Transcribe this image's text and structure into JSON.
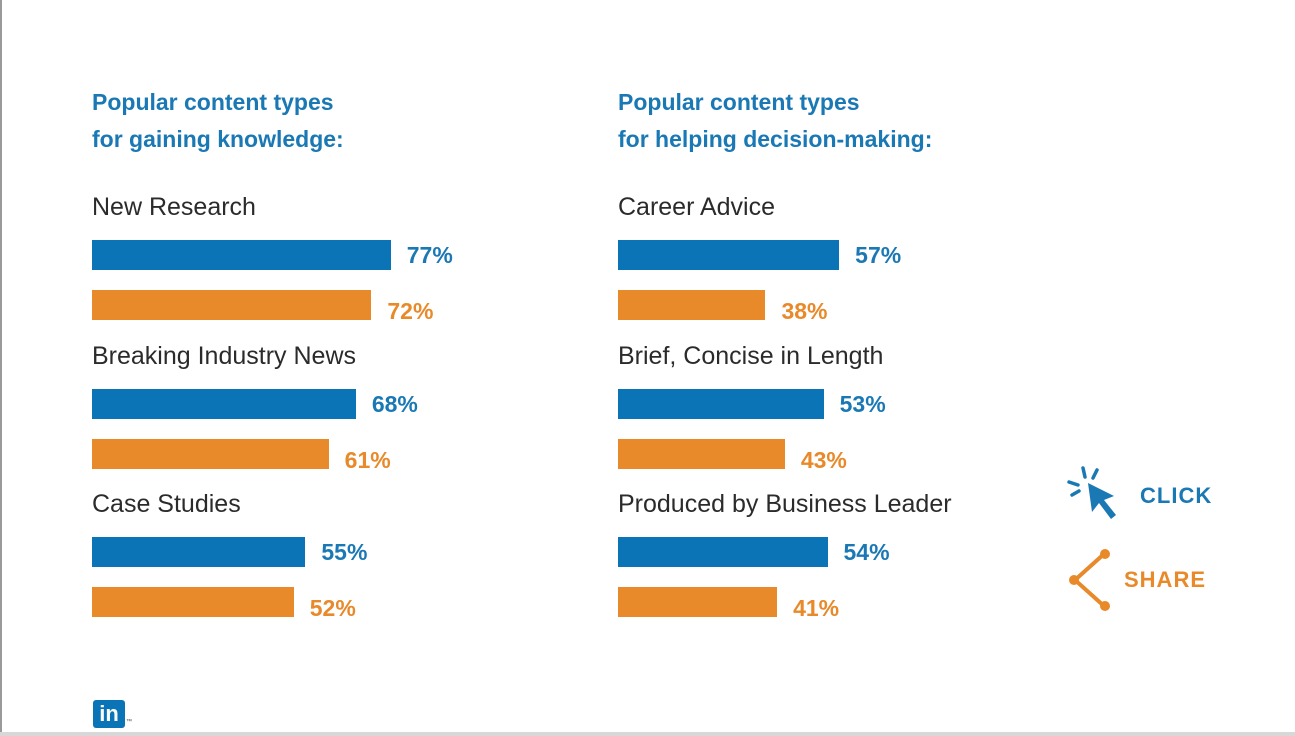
{
  "colors": {
    "accent_blue": "#0a74b6",
    "accent_orange": "#e8892a",
    "text": "#2b2b2b"
  },
  "left_panel": {
    "heading": [
      "Popular content types",
      "for gaining knowledge:"
    ],
    "groups": [
      {
        "label": "New Research",
        "values": [
          "77%",
          "72%"
        ]
      },
      {
        "label": "Breaking Industry News",
        "values": [
          "68%",
          "61%"
        ]
      },
      {
        "label": "Case Studies",
        "values": [
          "55%",
          "52%"
        ]
      }
    ]
  },
  "right_panel": {
    "heading": [
      "Popular content types",
      "for helping decision-making:"
    ],
    "groups": [
      {
        "label": "Career Advice",
        "values": [
          "57%",
          "38%"
        ]
      },
      {
        "label": "Brief, Concise in Length",
        "values": [
          "53%",
          "43%"
        ]
      },
      {
        "label": "Produced by Business Leader",
        "values": [
          "54%",
          "41%"
        ]
      }
    ]
  },
  "actions": {
    "click_label": "CLICK",
    "click_icon": "cursor-click-icon",
    "share_label": "SHARE",
    "share_icon": "share-icon"
  },
  "logo": {
    "text": "in",
    "trademark": "™",
    "icon": "linkedin-logo"
  },
  "chart_data": [
    {
      "type": "bar",
      "orientation": "horizontal",
      "title": "Popular content types for gaining knowledge:",
      "categories": [
        "New Research",
        "Breaking Industry News",
        "Case Studies"
      ],
      "series": [
        {
          "color": "#0a74b6",
          "values": [
            77,
            68,
            55
          ]
        },
        {
          "color": "#e8892a",
          "values": [
            72,
            61,
            52
          ]
        }
      ],
      "unit": "%",
      "xlim": [
        0,
        100
      ]
    },
    {
      "type": "bar",
      "orientation": "horizontal",
      "title": "Popular content types for helping decision-making:",
      "categories": [
        "Career Advice",
        "Brief, Concise in Length",
        "Produced by Business Leader"
      ],
      "series": [
        {
          "color": "#0a74b6",
          "values": [
            57,
            53,
            54
          ]
        },
        {
          "color": "#e8892a",
          "values": [
            38,
            43,
            41
          ]
        }
      ],
      "unit": "%",
      "xlim": [
        0,
        100
      ]
    }
  ]
}
